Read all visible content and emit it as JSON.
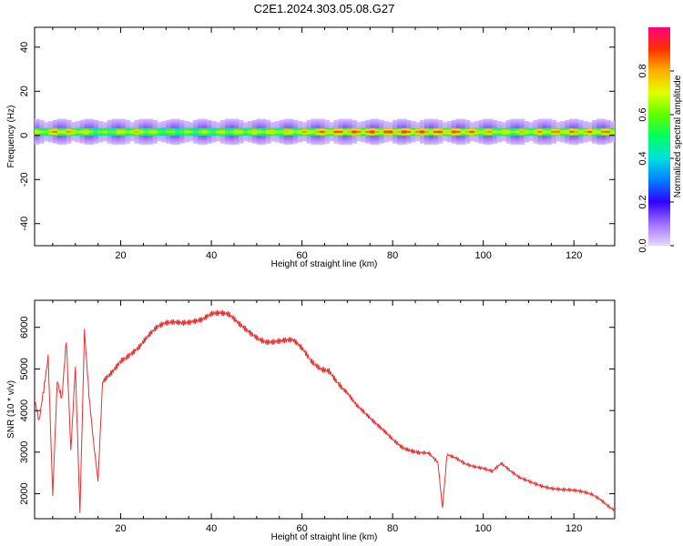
{
  "title": "C2E1.2024.303.05.08.G27",
  "chart_data": [
    {
      "type": "heatmap",
      "xlabel": "Height of straight line (km)",
      "ylabel": "Frequency (Hz)",
      "xlim": [
        1,
        129
      ],
      "ylim": [
        -50,
        49
      ],
      "xticks": [
        20,
        40,
        60,
        80,
        100,
        120
      ],
      "yticks": [
        -40,
        -20,
        0,
        20,
        40
      ],
      "colorbar": {
        "label": "Normalized spectral amplitude",
        "range": [
          0,
          1
        ],
        "ticks": [
          "0.0",
          "0.2",
          "0.4",
          "0.6",
          "0.8"
        ],
        "colors": [
          "#e8d8ff",
          "#a070ff",
          "#3000ff",
          "#0080ff",
          "#00e0e0",
          "#00ff60",
          "#60ff00",
          "#e0ff00",
          "#ffb000",
          "#ff3000",
          "#ff0080"
        ]
      },
      "band": {
        "center_freq_hz": 1.5,
        "core_halfwidth_hz": 1.5,
        "halo_halfwidth_hz": 6,
        "intensity_by_height": [
          {
            "x": 1,
            "v": 0.75
          },
          {
            "x": 5,
            "v": 0.9
          },
          {
            "x": 10,
            "v": 0.85
          },
          {
            "x": 15,
            "v": 0.7
          },
          {
            "x": 22,
            "v": 0.85
          },
          {
            "x": 30,
            "v": 0.7
          },
          {
            "x": 40,
            "v": 0.75
          },
          {
            "x": 50,
            "v": 0.8
          },
          {
            "x": 60,
            "v": 0.85
          },
          {
            "x": 65,
            "v": 0.95
          },
          {
            "x": 80,
            "v": 0.98
          },
          {
            "x": 95,
            "v": 0.95
          },
          {
            "x": 105,
            "v": 0.8
          },
          {
            "x": 115,
            "v": 0.9
          },
          {
            "x": 129,
            "v": 0.92
          }
        ]
      }
    },
    {
      "type": "line",
      "xlabel": "Height of straight line (km)",
      "ylabel": "SNR (10 * v/v)",
      "xlim": [
        1,
        129
      ],
      "ylim": [
        1400,
        6650
      ],
      "xticks": [
        20,
        40,
        60,
        80,
        100,
        120
      ],
      "yticks": [
        2000,
        3000,
        4000,
        5000,
        6000
      ],
      "series": [
        {
          "color": "#e83030",
          "points": [
            [
              1,
              4300
            ],
            [
              2,
              3800
            ],
            [
              3,
              4600
            ],
            [
              4,
              5400
            ],
            [
              5,
              2000
            ],
            [
              6,
              4800
            ],
            [
              7,
              4300
            ],
            [
              8,
              5700
            ],
            [
              9,
              3000
            ],
            [
              10,
              5000
            ],
            [
              11,
              1500
            ],
            [
              12,
              5800
            ],
            [
              13,
              4300
            ],
            [
              14,
              3200
            ],
            [
              15,
              2300
            ],
            [
              16,
              4700
            ],
            [
              18,
              5000
            ],
            [
              20,
              5300
            ],
            [
              22,
              5400
            ],
            [
              24,
              5500
            ],
            [
              26,
              5700
            ],
            [
              28,
              5900
            ],
            [
              30,
              6050
            ],
            [
              32,
              6150
            ],
            [
              34,
              6200
            ],
            [
              36,
              6250
            ],
            [
              38,
              6250
            ],
            [
              40,
              6300
            ],
            [
              42,
              6250
            ],
            [
              44,
              6200
            ],
            [
              46,
              6050
            ],
            [
              48,
              5950
            ],
            [
              50,
              5850
            ],
            [
              52,
              5750
            ],
            [
              54,
              5700
            ],
            [
              56,
              5650
            ],
            [
              58,
              5600
            ],
            [
              60,
              5400
            ],
            [
              62,
              5150
            ],
            [
              64,
              5050
            ],
            [
              66,
              5050
            ],
            [
              68,
              4750
            ],
            [
              70,
              4450
            ],
            [
              72,
              4100
            ],
            [
              74,
              3850
            ],
            [
              76,
              3650
            ],
            [
              78,
              3500
            ],
            [
              80,
              3350
            ],
            [
              82,
              3200
            ],
            [
              84,
              3100
            ],
            [
              86,
              3000
            ],
            [
              88,
              2950
            ],
            [
              90,
              2700
            ],
            [
              91,
              1600
            ],
            [
              92,
              2900
            ],
            [
              94,
              2850
            ],
            [
              96,
              2750
            ],
            [
              98,
              2700
            ],
            [
              100,
              2650
            ],
            [
              102,
              2550
            ],
            [
              104,
              2700
            ],
            [
              106,
              2500
            ],
            [
              108,
              2350
            ],
            [
              110,
              2300
            ],
            [
              112,
              2250
            ],
            [
              114,
              2200
            ],
            [
              116,
              2150
            ],
            [
              118,
              2100
            ],
            [
              120,
              2050
            ],
            [
              122,
              2000
            ],
            [
              124,
              1950
            ],
            [
              126,
              1850
            ],
            [
              128,
              1700
            ],
            [
              129,
              1650
            ]
          ]
        }
      ]
    }
  ]
}
